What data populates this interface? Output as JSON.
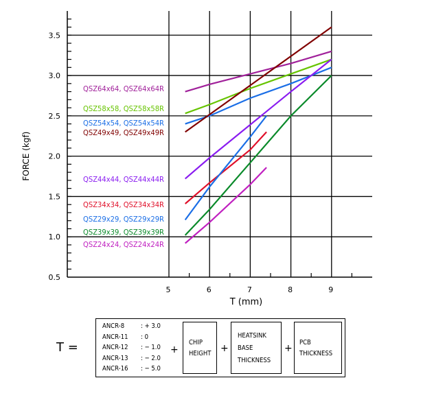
{
  "chart_data": {
    "type": "line",
    "xlabel": "T (mm)",
    "ylabel": "FORCE    (kgf)",
    "xlim": [
      2.5,
      10
    ],
    "ylim": [
      0.5,
      3.8
    ],
    "x_ticks": [
      "5",
      "6",
      "7",
      "8",
      "9"
    ],
    "y_ticks": [
      "0.5",
      "1.0",
      "1.5",
      "2.0",
      "2.5",
      "3.0",
      "3.5"
    ],
    "grid": true,
    "series": [
      {
        "name": "QSZ64x64, QSZ64x64R",
        "color": "#a0209a",
        "x": [
          5.4,
          6,
          7,
          8,
          9
        ],
        "y": [
          2.8,
          2.89,
          3.02,
          3.15,
          3.3
        ]
      },
      {
        "name": "QSZ58x58, QSZ58x58R",
        "color": "#66c400",
        "x": [
          5.4,
          6,
          7,
          8,
          9
        ],
        "y": [
          2.53,
          2.64,
          2.84,
          3.02,
          3.2
        ]
      },
      {
        "name": "QSZ54x54, QSZ54x54R",
        "color": "#1a6ee6",
        "x": [
          5.4,
          6,
          7,
          8,
          9
        ],
        "y": [
          2.4,
          2.5,
          2.72,
          2.9,
          3.1
        ]
      },
      {
        "name": "QSZ49x49, QSZ49x49R",
        "color": "#800000",
        "x": [
          5.4,
          9
        ],
        "y": [
          2.3,
          3.6
        ]
      },
      {
        "name": "QSZ44x44, QSZ44x44R",
        "color": "#8a1cf0",
        "x": [
          5.4,
          6,
          7,
          8,
          9
        ],
        "y": [
          1.72,
          1.98,
          2.39,
          2.8,
          3.2
        ]
      },
      {
        "name": "QSZ34x34, QSZ34x34R",
        "color": "#e0102a",
        "x": [
          5.4,
          6,
          7,
          7.4
        ],
        "y": [
          1.41,
          1.67,
          2.08,
          2.3
        ]
      },
      {
        "name": "QSZ29x29, QSZ29x29R",
        "color": "#1a6ee6",
        "x": [
          5.4,
          6,
          7,
          7.4
        ],
        "y": [
          1.21,
          1.62,
          2.24,
          2.5
        ]
      },
      {
        "name": "QSZ39x39, QSZ39x39R",
        "color": "#0a8a2a",
        "x": [
          5.4,
          6,
          7,
          8,
          9
        ],
        "y": [
          1.02,
          1.34,
          1.92,
          2.5,
          3.0
        ]
      },
      {
        "name": "QSZ24x24, QSZ24x24R",
        "color": "#c020c0",
        "x": [
          5.4,
          6,
          7,
          7.4
        ],
        "y": [
          0.92,
          1.18,
          1.65,
          1.86
        ]
      }
    ]
  },
  "formula": {
    "lhs": "T =",
    "anchors": [
      {
        "name": "ANCR-8",
        "value": ": + 3.0"
      },
      {
        "name": "ANCR-11",
        "value": ":    0"
      },
      {
        "name": "ANCR-12",
        "value": ": − 1.0"
      },
      {
        "name": "ANCR-13",
        "value": ": − 2.0"
      },
      {
        "name": "ANCR-16",
        "value": ": − 5.0"
      }
    ],
    "plus": "+",
    "terms": [
      {
        "lines": [
          "CHIP",
          "HEIGHT"
        ]
      },
      {
        "lines": [
          "HEATSINK",
          "BASE",
          "THICKNESS"
        ]
      },
      {
        "lines": [
          "PCB",
          "THICKNESS"
        ]
      }
    ]
  }
}
